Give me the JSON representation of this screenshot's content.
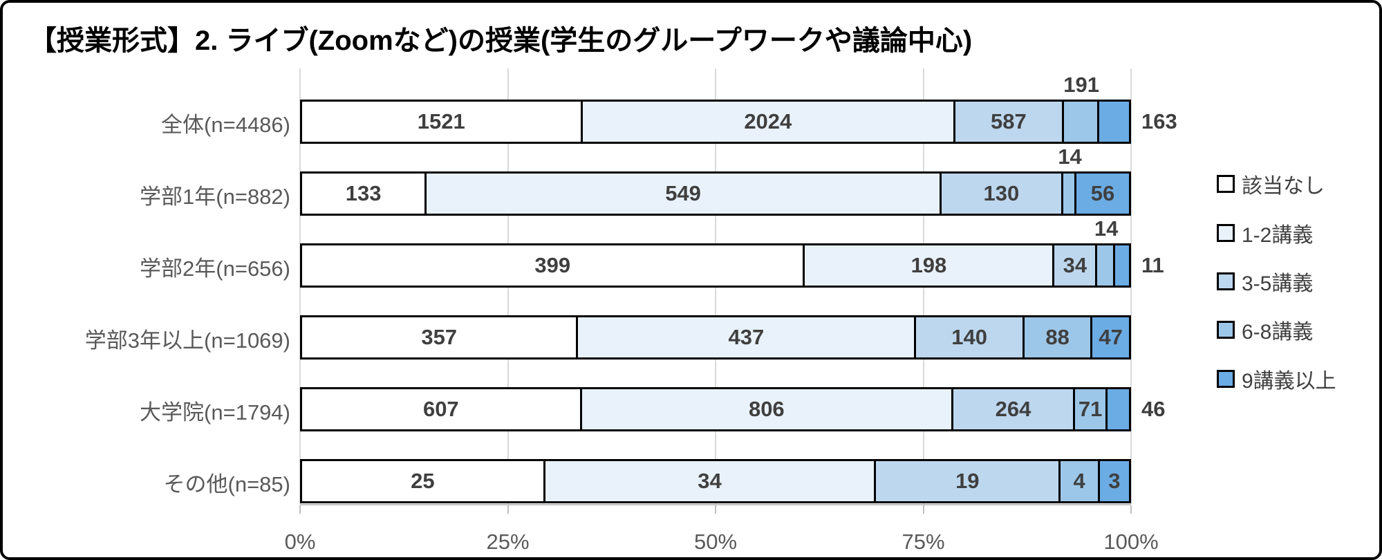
{
  "title": "【授業形式】2. ライブ(Zoomなど)の授業(学生のグループワークや議論中心)",
  "chart_data": {
    "type": "bar",
    "orientation": "horizontal",
    "stacked": "percent",
    "title": "【授業形式】2. ライブ(Zoomなど)の授業(学生のグループワークや議論中心)",
    "categories": [
      "全体(n=4486)",
      "学部1年(n=882)",
      "学部2年(n=656)",
      "学部3年以上(n=1069)",
      "大学院(n=1794)",
      "その他(n=85)"
    ],
    "totals": [
      4486,
      882,
      656,
      1069,
      1794,
      85
    ],
    "series": [
      {
        "name": "該当なし",
        "color": "#FFFFFF",
        "values": [
          1521,
          133,
          399,
          357,
          607,
          25
        ]
      },
      {
        "name": "1-2講義",
        "color": "#E9F2FA",
        "values": [
          2024,
          549,
          198,
          437,
          806,
          34
        ]
      },
      {
        "name": "3-5講義",
        "color": "#BDD7EE",
        "values": [
          587,
          130,
          34,
          140,
          264,
          19
        ]
      },
      {
        "name": "6-8講義",
        "color": "#9DC7E8",
        "values": [
          191,
          14,
          14,
          88,
          71,
          4
        ]
      },
      {
        "name": "9講義以上",
        "color": "#6CACE4",
        "values": [
          163,
          56,
          11,
          47,
          46,
          3
        ]
      }
    ],
    "label_placement": [
      [
        "inside",
        "inside",
        "inside",
        "above",
        "right"
      ],
      [
        "inside",
        "inside",
        "inside",
        "above",
        "inside"
      ],
      [
        "inside",
        "inside",
        "inside",
        "above",
        "right"
      ],
      [
        "inside",
        "inside",
        "inside",
        "inside",
        "inside"
      ],
      [
        "inside",
        "inside",
        "inside",
        "inside",
        "right"
      ],
      [
        "inside",
        "inside",
        "inside",
        "inside",
        "inside"
      ]
    ],
    "x_ticks": [
      "0%",
      "25%",
      "50%",
      "75%",
      "100%"
    ],
    "x_tick_positions": [
      0,
      25,
      50,
      75,
      100
    ],
    "xlim": [
      0,
      100
    ],
    "grid": true,
    "legend": {
      "position": "right",
      "items": [
        "該当なし",
        "1-2講義",
        "3-5講義",
        "6-8講義",
        "9講義以上"
      ]
    }
  },
  "colors": {
    "background": "#FFFFFF",
    "frame_border": "#000000",
    "segment_border": "#000000",
    "gridline": "#D9D9D9",
    "axis": "#BFBFBF",
    "title_text": "#000000",
    "category_label": "#595959",
    "tick_label": "#595959",
    "value_label": "#3F3F3F",
    "legend_text": "#404040"
  }
}
